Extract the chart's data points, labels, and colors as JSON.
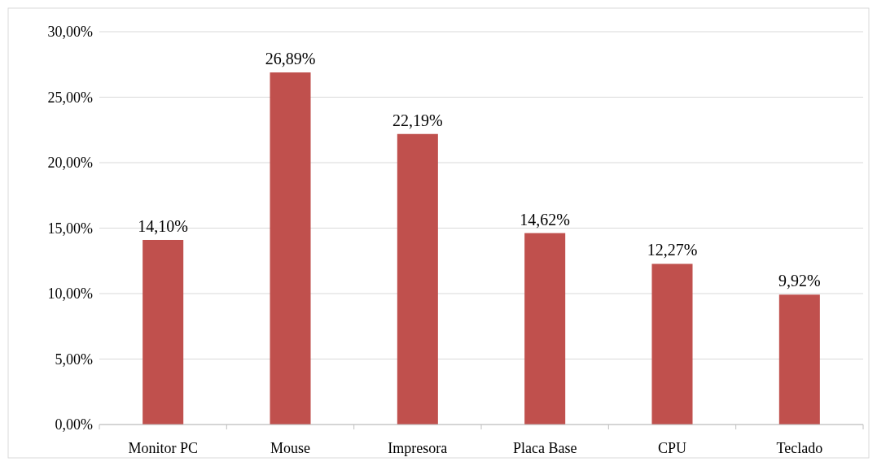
{
  "chart_data": {
    "type": "bar",
    "categories": [
      "Monitor PC",
      "Mouse",
      "Impresora",
      "Placa Base",
      "CPU",
      "Teclado"
    ],
    "values": [
      14.1,
      26.89,
      22.19,
      14.62,
      12.27,
      9.92
    ],
    "value_labels": [
      "14,10%",
      "26,89%",
      "22,19%",
      "14,62%",
      "12,27%",
      "9,92%"
    ],
    "color": "#c0504d",
    "ylim": [
      0,
      30
    ],
    "yticks": [
      {
        "value": 0,
        "label": "0,00%"
      },
      {
        "value": 5,
        "label": "5,00%"
      },
      {
        "value": 10,
        "label": "10,00%"
      },
      {
        "value": 15,
        "label": "15,00%"
      },
      {
        "value": 20,
        "label": "20,00%"
      },
      {
        "value": 25,
        "label": "25,00%"
      },
      {
        "value": 30,
        "label": "30,00%"
      }
    ],
    "grid": "y"
  }
}
